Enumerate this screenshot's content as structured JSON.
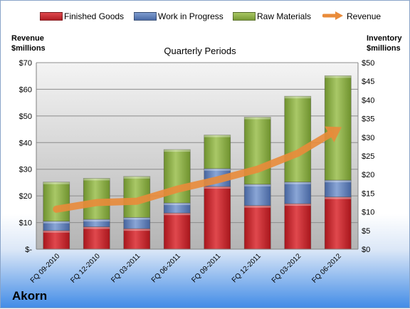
{
  "legend": {
    "items": [
      {
        "label": "Finished Goods",
        "color": "#c0272d"
      },
      {
        "label": "Work in Progress",
        "color": "#5d7fb8"
      },
      {
        "label": "Raw Materials",
        "color": "#8db045"
      },
      {
        "label": "Revenue",
        "color": "#e98b3a"
      }
    ]
  },
  "left_axis_title": {
    "line1": "Revenue",
    "line2": "$millions"
  },
  "right_axis_title": {
    "line1": "Inventory",
    "line2": "$millions"
  },
  "company": "Akorn",
  "chart_data": {
    "type": "bar",
    "title": "Quarterly Periods",
    "categories": [
      "FQ 09-2010",
      "FQ 12-2010",
      "FQ 03-2011",
      "FQ 06-2011",
      "FQ 09-2011",
      "FQ 12-2011",
      "FQ 03-2012",
      "FQ 06-2012"
    ],
    "stacked": true,
    "series": [
      {
        "name": "Finished Goods",
        "axis": "right",
        "color": "#c0272d",
        "values": [
          5,
          6,
          5.5,
          9.7,
          16.8,
          11.7,
          12.2,
          14
        ]
      },
      {
        "name": "Work in Progress",
        "axis": "right",
        "color": "#5d7fb8",
        "values": [
          2.5,
          2,
          3,
          2.7,
          4.8,
          5.7,
          5.8,
          4.5
        ]
      },
      {
        "name": "Raw Materials",
        "axis": "right",
        "color": "#8db045",
        "values": [
          10.5,
          11,
          11,
          14.3,
          9,
          18,
          23,
          28
        ]
      },
      {
        "name": "Revenue",
        "axis": "left",
        "type": "line",
        "color": "#e98b3a",
        "values": [
          15,
          17.5,
          18,
          22.5,
          26,
          30,
          36,
          45
        ]
      }
    ],
    "y_left": {
      "ylim": [
        0,
        70
      ],
      "tick_labels": [
        "$-",
        "$10",
        "$20",
        "$30",
        "$40",
        "$50",
        "$60",
        "$70"
      ]
    },
    "y_right": {
      "ylim": [
        0,
        50
      ],
      "tick_labels": [
        "$0",
        "$5",
        "$10",
        "$15",
        "$20",
        "$25",
        "$30",
        "$35",
        "$40",
        "$45",
        "$50"
      ]
    },
    "grid": true,
    "legend_position": "top"
  }
}
